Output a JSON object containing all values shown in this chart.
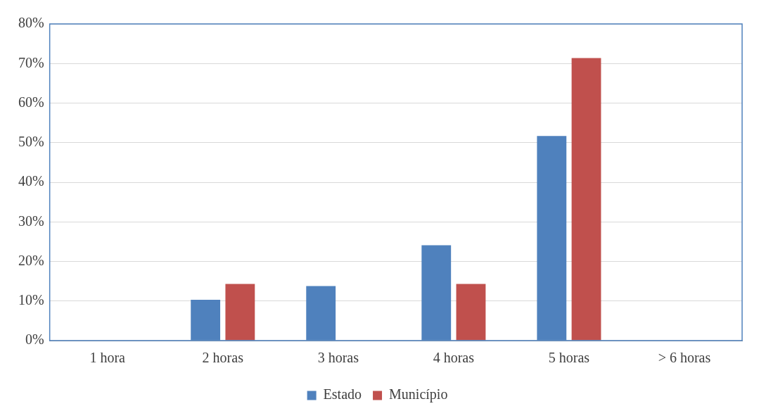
{
  "chart_data": {
    "type": "bar",
    "categories": [
      "1 hora",
      "2 horas",
      "3 horas",
      "4 horas",
      "5 horas",
      "> 6 horas"
    ],
    "series": [
      {
        "name": "Estado",
        "color": "#4f81bd",
        "values": [
          0,
          10.3,
          13.8,
          24.1,
          51.7,
          0
        ]
      },
      {
        "name": "Município",
        "color": "#c0504d",
        "values": [
          0,
          14.3,
          0,
          14.3,
          71.4,
          0
        ]
      }
    ],
    "ylim": [
      0,
      80
    ],
    "yticks": [
      {
        "value": 0,
        "label": "0%"
      },
      {
        "value": 10,
        "label": "10%"
      },
      {
        "value": 20,
        "label": "20%"
      },
      {
        "value": 30,
        "label": "30%"
      },
      {
        "value": 40,
        "label": "40%"
      },
      {
        "value": 50,
        "label": "50%"
      },
      {
        "value": 60,
        "label": "60%"
      },
      {
        "value": 70,
        "label": "70%"
      },
      {
        "value": 80,
        "label": "80%"
      }
    ],
    "grid": "y",
    "legend": "bottom"
  }
}
